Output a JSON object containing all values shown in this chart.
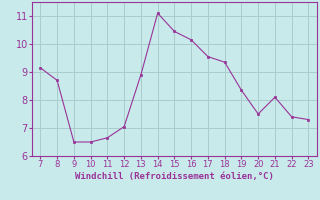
{
  "x": [
    7,
    8,
    9,
    10,
    11,
    12,
    13,
    14,
    15,
    16,
    17,
    18,
    19,
    20,
    21,
    22,
    23
  ],
  "y": [
    9.15,
    8.7,
    6.5,
    6.5,
    6.65,
    7.05,
    8.9,
    11.1,
    10.45,
    10.15,
    9.55,
    9.35,
    8.35,
    7.5,
    8.1,
    7.4,
    7.3
  ],
  "line_color": "#993399",
  "marker_color": "#993399",
  "bg_color": "#c8eaea",
  "grid_color": "#aacccc",
  "xlabel": "Windchill (Refroidissement éolien,°C)",
  "xlabel_color": "#993399",
  "tick_color": "#993399",
  "spine_color": "#993399",
  "ylim_min": 6,
  "ylim_max": 11.5,
  "xlim_min": 6.5,
  "xlim_max": 23.5,
  "yticks": [
    6,
    7,
    8,
    9,
    10,
    11
  ],
  "xticks": [
    7,
    8,
    9,
    10,
    11,
    12,
    13,
    14,
    15,
    16,
    17,
    18,
    19,
    20,
    21,
    22,
    23
  ]
}
